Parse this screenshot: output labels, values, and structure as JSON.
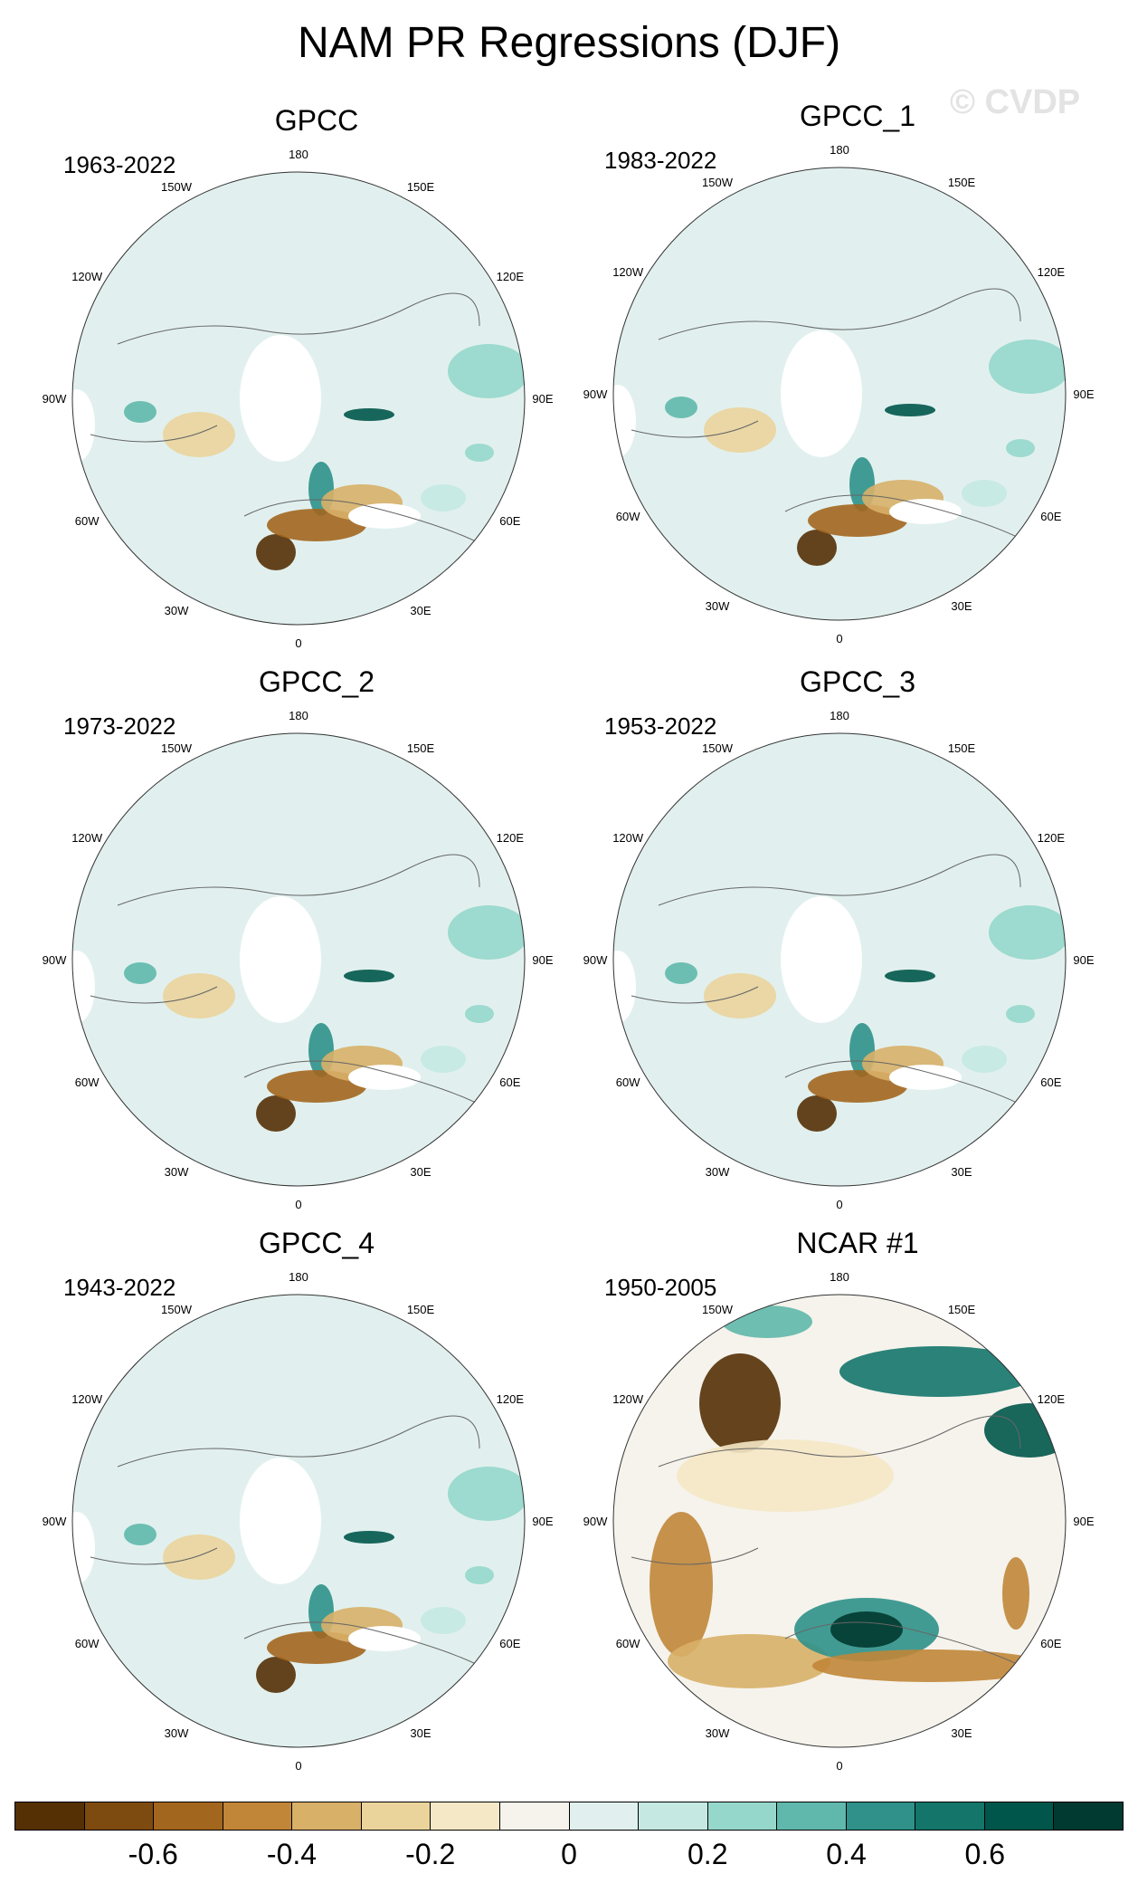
{
  "figure": {
    "title": "NAM PR Regressions (DJF)",
    "watermark": "© CVDP"
  },
  "panels": [
    {
      "title": "GPCC",
      "years": "1963-2022"
    },
    {
      "title": "GPCC_1",
      "years": "1983-2022"
    },
    {
      "title": "GPCC_2",
      "years": "1973-2022"
    },
    {
      "title": "GPCC_3",
      "years": "1953-2022"
    },
    {
      "title": "GPCC_4",
      "years": "1943-2022"
    },
    {
      "title": "NCAR #1",
      "years": "1950-2005"
    }
  ],
  "longitude_labels": [
    "180",
    "150E",
    "120E",
    "90E",
    "60E",
    "30E",
    "0",
    "30W",
    "60W",
    "90W",
    "120W",
    "150W"
  ],
  "colorbar": {
    "colors": [
      "#553005",
      "#7d4b0f",
      "#a3661e",
      "#c18638",
      "#d8b068",
      "#ebd49c",
      "#f5e8c6",
      "#f5f3ec",
      "#e1f0ee",
      "#c5e9e2",
      "#96d7cb",
      "#5fb8ab",
      "#2f9189",
      "#14756b",
      "#01564b",
      "#013a30"
    ],
    "tick_labels": [
      "-0.6",
      "-0.4",
      "-0.2",
      "0",
      "0.2",
      "0.4",
      "0.6"
    ]
  }
}
